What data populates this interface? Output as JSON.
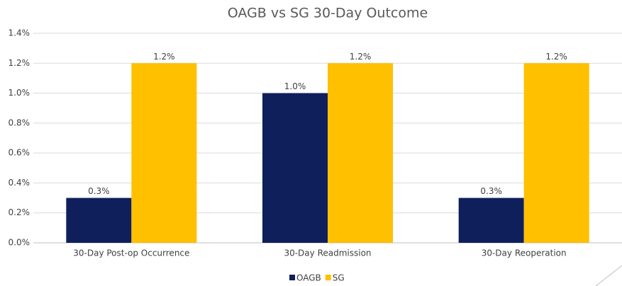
{
  "chart_data": {
    "type": "bar",
    "title": "OAGB vs SG 30-Day Outcome",
    "categories": [
      "30-Day Post-op Occurrence",
      "30-Day Readmission",
      "30-Day Reoperation"
    ],
    "series": [
      {
        "name": "OAGB",
        "color": "#0e1f5b",
        "values": [
          0.3,
          1.0,
          0.3
        ],
        "value_labels": [
          "0.3%",
          "1.0%",
          "0.3%"
        ]
      },
      {
        "name": "SG",
        "color": "#ffc000",
        "values": [
          1.2,
          1.2,
          1.2
        ],
        "value_labels": [
          "1.2%",
          "1.2%",
          "1.2%"
        ]
      }
    ],
    "ylim": [
      0,
      1.4
    ],
    "yticks": [
      {
        "value": 0,
        "label": "0.0%"
      },
      {
        "value": 0.2,
        "label": "0.2%"
      },
      {
        "value": 0.4,
        "label": "0.4%"
      },
      {
        "value": 0.6,
        "label": "0.6%"
      },
      {
        "value": 0.8,
        "label": "0.8%"
      },
      {
        "value": 1.0,
        "label": "1.0%"
      },
      {
        "value": 1.2,
        "label": "1.2%"
      },
      {
        "value": 1.4,
        "label": "1.4%"
      }
    ],
    "grid": true,
    "legend": "bottom"
  }
}
